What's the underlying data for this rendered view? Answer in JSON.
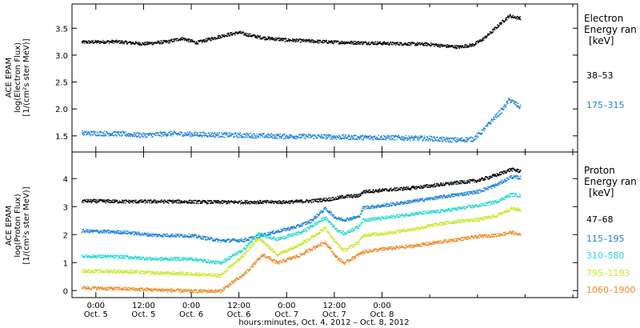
{
  "chart_data": [
    {
      "type": "scatter",
      "panel": "electron",
      "ylabel_lines": [
        "ACE EPAM",
        "log(Electron Flux)",
        "[1/(cm²s ster MeV)]"
      ],
      "legend_title": [
        "Electron",
        "Energy ran",
        "[keV]"
      ],
      "ylim": [
        1.2,
        3.95
      ],
      "yticks": [
        1.5,
        2.0,
        2.5,
        3.0,
        3.5
      ],
      "ytick_labels": [
        "1.5",
        "2.0",
        "2.5",
        "3.0",
        "3.5"
      ],
      "series": [
        {
          "name": "38–53",
          "color": "#000000",
          "points": [
            [
              -0.15,
              3.25
            ],
            [
              0.2,
              3.26
            ],
            [
              0.5,
              3.22
            ],
            [
              0.75,
              3.26
            ],
            [
              0.9,
              3.32
            ],
            [
              1.05,
              3.24
            ],
            [
              1.2,
              3.31
            ],
            [
              1.35,
              3.38
            ],
            [
              1.5,
              3.43
            ],
            [
              1.6,
              3.38
            ],
            [
              1.75,
              3.33
            ],
            [
              2.0,
              3.29
            ],
            [
              2.25,
              3.27
            ],
            [
              2.5,
              3.25
            ],
            [
              2.75,
              3.24
            ],
            [
              3.0,
              3.23
            ],
            [
              3.25,
              3.22
            ],
            [
              3.5,
              3.21
            ],
            [
              3.65,
              3.18
            ],
            [
              3.8,
              3.16
            ],
            [
              3.95,
              3.2
            ],
            [
              4.05,
              3.3
            ],
            [
              4.15,
              3.45
            ],
            [
              4.25,
              3.62
            ],
            [
              4.33,
              3.74
            ],
            [
              4.4,
              3.71
            ],
            [
              4.45,
              3.7
            ]
          ]
        },
        {
          "name": "175–315",
          "color": "#1a7fd4",
          "points": [
            [
              -0.15,
              1.56
            ],
            [
              0.2,
              1.55
            ],
            [
              0.5,
              1.52
            ],
            [
              0.75,
              1.55
            ],
            [
              1.0,
              1.54
            ],
            [
              1.25,
              1.53
            ],
            [
              1.5,
              1.52
            ],
            [
              1.75,
              1.51
            ],
            [
              2.0,
              1.5
            ],
            [
              2.25,
              1.5
            ],
            [
              2.5,
              1.49
            ],
            [
              2.75,
              1.48
            ],
            [
              3.0,
              1.48
            ],
            [
              3.25,
              1.47
            ],
            [
              3.5,
              1.46
            ],
            [
              3.65,
              1.44
            ],
            [
              3.8,
              1.43
            ],
            [
              3.95,
              1.45
            ],
            [
              4.05,
              1.6
            ],
            [
              4.15,
              1.8
            ],
            [
              4.25,
              1.98
            ],
            [
              4.33,
              2.18
            ],
            [
              4.4,
              2.1
            ],
            [
              4.45,
              2.03
            ]
          ]
        }
      ]
    },
    {
      "type": "scatter",
      "panel": "proton",
      "ylabel_lines": [
        "ACE EPAM",
        "log(Proton Flux)",
        "[1/(cm²s ster MeV)]"
      ],
      "legend_title": [
        "Proton",
        "Energy ran",
        "[keV]"
      ],
      "ylim": [
        -0.25,
        4.95
      ],
      "yticks": [
        0,
        1,
        2,
        3,
        4
      ],
      "ytick_labels": [
        "0",
        "1",
        "2",
        "3",
        "4"
      ],
      "series": [
        {
          "name": "47–68",
          "color": "#000000",
          "points": [
            [
              -0.15,
              3.22
            ],
            [
              0.3,
              3.2
            ],
            [
              0.8,
              3.2
            ],
            [
              1.2,
              3.18
            ],
            [
              1.6,
              3.18
            ],
            [
              2.0,
              3.18
            ],
            [
              2.25,
              3.22
            ],
            [
              2.5,
              3.3
            ],
            [
              2.6,
              3.38
            ],
            [
              2.75,
              3.4
            ],
            [
              2.8,
              3.55
            ],
            [
              3.0,
              3.6
            ],
            [
              3.3,
              3.68
            ],
            [
              3.6,
              3.8
            ],
            [
              3.8,
              3.88
            ],
            [
              4.0,
              3.95
            ],
            [
              4.2,
              4.15
            ],
            [
              4.35,
              4.35
            ],
            [
              4.45,
              4.28
            ]
          ]
        },
        {
          "name": "115–195",
          "color": "#1a7fd4",
          "points": [
            [
              -0.15,
              2.15
            ],
            [
              0.3,
              2.1
            ],
            [
              0.6,
              2.0
            ],
            [
              1.0,
              1.98
            ],
            [
              1.3,
              1.8
            ],
            [
              1.55,
              1.82
            ],
            [
              1.8,
              2.05
            ],
            [
              2.1,
              2.3
            ],
            [
              2.25,
              2.5
            ],
            [
              2.4,
              2.95
            ],
            [
              2.52,
              2.6
            ],
            [
              2.6,
              2.55
            ],
            [
              2.75,
              2.65
            ],
            [
              2.8,
              2.98
            ],
            [
              3.0,
              3.05
            ],
            [
              3.3,
              3.2
            ],
            [
              3.6,
              3.35
            ],
            [
              3.8,
              3.45
            ],
            [
              4.0,
              3.55
            ],
            [
              4.2,
              3.8
            ],
            [
              4.35,
              4.08
            ],
            [
              4.45,
              4.05
            ]
          ]
        },
        {
          "name": "310–580",
          "color": "#28d8cf",
          "points": [
            [
              -0.15,
              1.25
            ],
            [
              0.3,
              1.22
            ],
            [
              0.6,
              1.15
            ],
            [
              1.0,
              1.15
            ],
            [
              1.3,
              1.0
            ],
            [
              1.55,
              1.5
            ],
            [
              1.7,
              2.05
            ],
            [
              1.9,
              1.85
            ],
            [
              2.15,
              2.1
            ],
            [
              2.25,
              2.3
            ],
            [
              2.4,
              2.62
            ],
            [
              2.52,
              2.2
            ],
            [
              2.6,
              2.05
            ],
            [
              2.75,
              2.3
            ],
            [
              2.8,
              2.55
            ],
            [
              3.0,
              2.6
            ],
            [
              3.3,
              2.75
            ],
            [
              3.6,
              2.85
            ],
            [
              3.8,
              2.95
            ],
            [
              4.0,
              3.05
            ],
            [
              4.2,
              3.2
            ],
            [
              4.35,
              3.45
            ],
            [
              4.45,
              3.4
            ]
          ]
        },
        {
          "name": "795–1193",
          "color": "#c6e82a",
          "points": [
            [
              -0.15,
              0.72
            ],
            [
              0.3,
              0.7
            ],
            [
              0.6,
              0.65
            ],
            [
              1.0,
              0.62
            ],
            [
              1.3,
              0.55
            ],
            [
              1.55,
              1.3
            ],
            [
              1.7,
              1.9
            ],
            [
              1.9,
              1.3
            ],
            [
              2.15,
              1.7
            ],
            [
              2.25,
              1.9
            ],
            [
              2.4,
              2.25
            ],
            [
              2.52,
              1.7
            ],
            [
              2.6,
              1.45
            ],
            [
              2.75,
              1.75
            ],
            [
              2.8,
              2.0
            ],
            [
              3.0,
              2.05
            ],
            [
              3.3,
              2.2
            ],
            [
              3.6,
              2.4
            ],
            [
              3.8,
              2.5
            ],
            [
              4.0,
              2.55
            ],
            [
              4.2,
              2.7
            ],
            [
              4.35,
              2.95
            ],
            [
              4.45,
              2.9
            ]
          ]
        },
        {
          "name": "1060–1900",
          "color": "#ec8a26",
          "points": [
            [
              -0.15,
              0.12
            ],
            [
              0.3,
              0.08
            ],
            [
              0.6,
              0.05
            ],
            [
              1.0,
              0.0
            ],
            [
              1.3,
              0.0
            ],
            [
              1.55,
              0.6
            ],
            [
              1.75,
              1.3
            ],
            [
              1.9,
              1.0
            ],
            [
              2.15,
              1.3
            ],
            [
              2.25,
              1.5
            ],
            [
              2.4,
              1.75
            ],
            [
              2.52,
              1.2
            ],
            [
              2.6,
              1.0
            ],
            [
              2.75,
              1.3
            ],
            [
              2.8,
              1.4
            ],
            [
              3.0,
              1.5
            ],
            [
              3.3,
              1.6
            ],
            [
              3.6,
              1.75
            ],
            [
              3.8,
              1.85
            ],
            [
              4.0,
              1.95
            ],
            [
              4.2,
              2.0
            ],
            [
              4.35,
              2.1
            ],
            [
              4.45,
              2.0
            ]
          ]
        }
      ]
    }
  ],
  "x_axis": {
    "xlim": [
      -0.25,
      5.05
    ],
    "ticks": [
      0,
      0.5,
      1,
      1.5,
      2,
      2.5,
      3,
      3.5,
      4,
      4.5,
      5
    ],
    "tick_labels": [
      [
        "0:00",
        "Oct. 5"
      ],
      [
        "12:00",
        "Oct. 5"
      ],
      [
        "0:00",
        "Oct. 6"
      ],
      [
        "12:00",
        "Oct. 6"
      ],
      [
        "0:00",
        "Oct. 7"
      ],
      [
        "12:00",
        "Oct. 7"
      ],
      [
        "0:00",
        "Oct. 8"
      ]
    ],
    "labeled_ticks": [
      0,
      0.5,
      1,
      1.5,
      2,
      2.5,
      3
    ],
    "xlabel": "hours:minutes, Oct.  4, 2012 – Oct.  8, 2012"
  }
}
